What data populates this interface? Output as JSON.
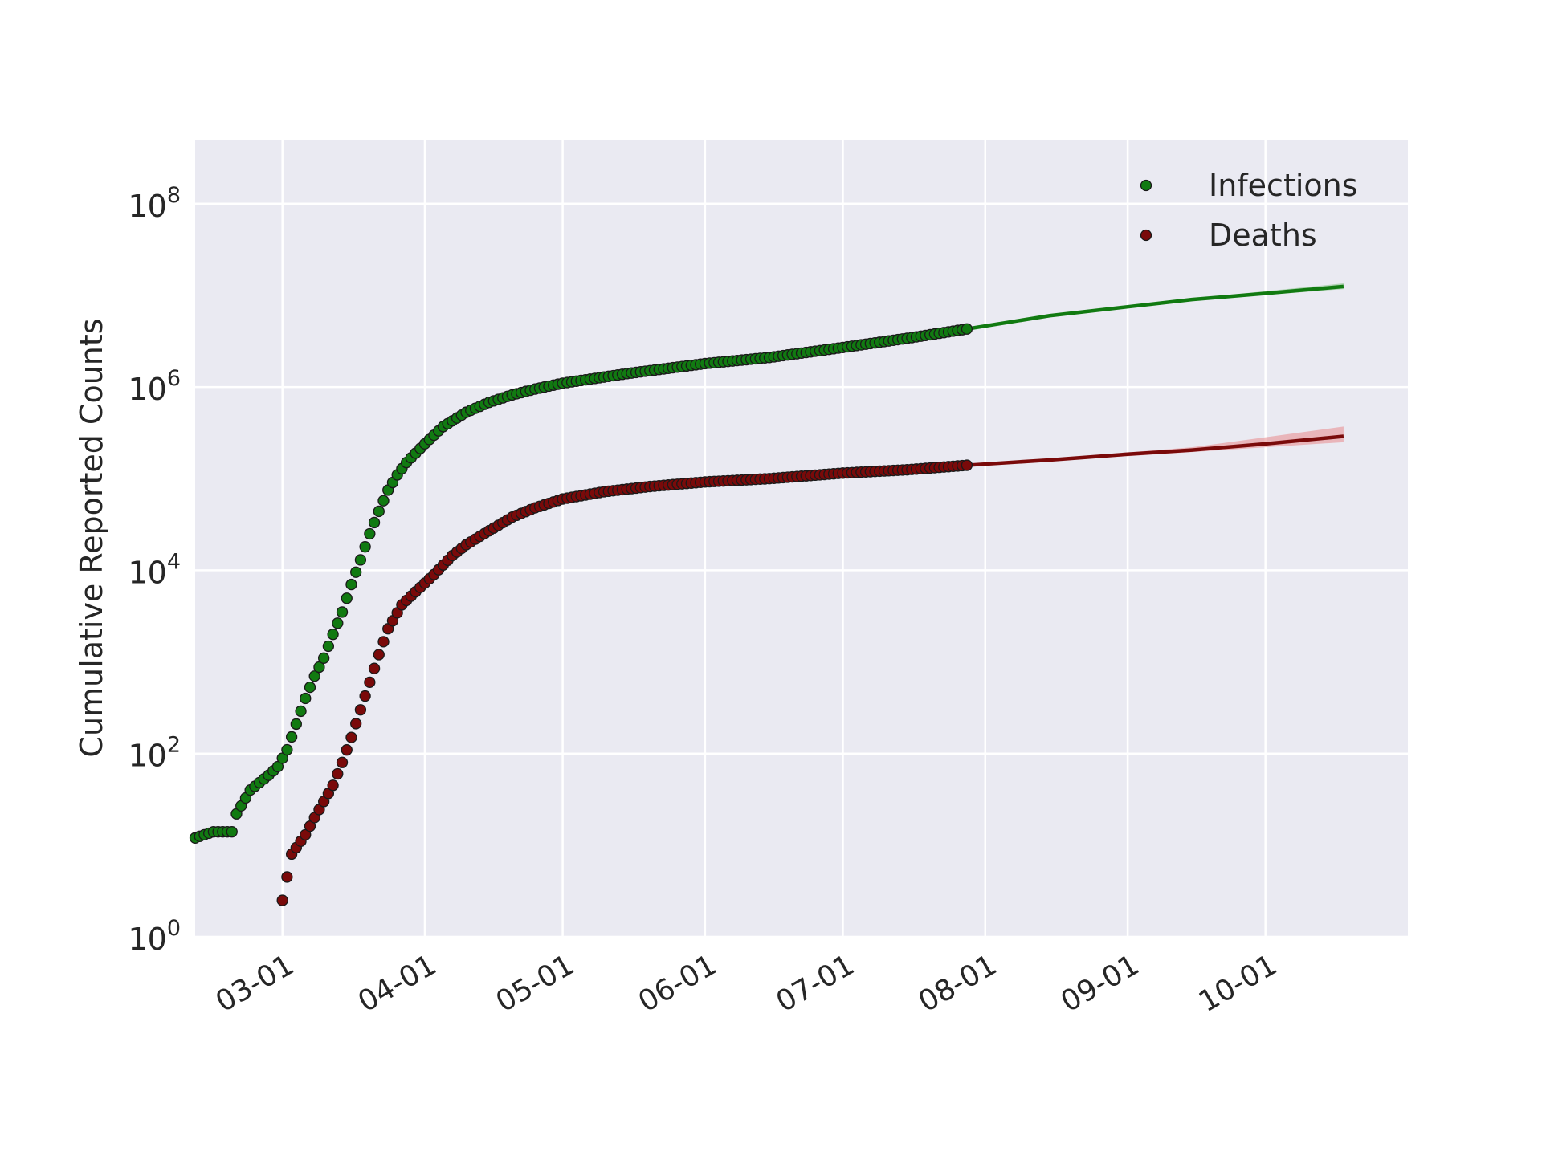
{
  "chart_data": {
    "type": "scatter",
    "title": "",
    "xlabel": "",
    "ylabel": "Cumulative Reported Counts",
    "y_scale": "log",
    "ylim": [
      1,
      500000000
    ],
    "xlim": [
      "2020-02-11",
      "2020-11-01"
    ],
    "grid": true,
    "legend_position": "top-right",
    "x_ticks": [
      {
        "date": "2020-03-01",
        "label": "03-01"
      },
      {
        "date": "2020-04-01",
        "label": "04-01"
      },
      {
        "date": "2020-05-01",
        "label": "05-01"
      },
      {
        "date": "2020-06-01",
        "label": "06-01"
      },
      {
        "date": "2020-07-01",
        "label": "07-01"
      },
      {
        "date": "2020-08-01",
        "label": "08-01"
      },
      {
        "date": "2020-09-01",
        "label": "09-01"
      },
      {
        "date": "2020-10-01",
        "label": "10-01"
      }
    ],
    "y_ticks": [
      {
        "value": 1,
        "base": "10",
        "exp": "0"
      },
      {
        "value": 100,
        "base": "10",
        "exp": "2"
      },
      {
        "value": 10000,
        "base": "10",
        "exp": "4"
      },
      {
        "value": 1000000,
        "base": "10",
        "exp": "6"
      },
      {
        "value": 100000000,
        "base": "10",
        "exp": "8"
      }
    ],
    "series": [
      {
        "name": "Infections",
        "color": "#117a11",
        "observed_start": "2020-02-11",
        "observed_end": "2020-07-28",
        "observed_anchors": [
          [
            "2020-02-11",
            12
          ],
          [
            "2020-02-13",
            13
          ],
          [
            "2020-02-15",
            14
          ],
          [
            "2020-02-19",
            14
          ],
          [
            "2020-02-20",
            22
          ],
          [
            "2020-02-23",
            40
          ],
          [
            "2020-02-27",
            58
          ],
          [
            "2020-02-29",
            72
          ],
          [
            "2020-03-02",
            110
          ],
          [
            "2020-03-04",
            210
          ],
          [
            "2020-03-06",
            400
          ],
          [
            "2020-03-08",
            700
          ],
          [
            "2020-03-10",
            1100
          ],
          [
            "2020-03-12",
            2000
          ],
          [
            "2020-03-14",
            3500
          ],
          [
            "2020-03-16",
            7000
          ],
          [
            "2020-03-18",
            13000
          ],
          [
            "2020-03-20",
            25000
          ],
          [
            "2020-03-22",
            44000
          ],
          [
            "2020-03-24",
            75000
          ],
          [
            "2020-03-26",
            110000
          ],
          [
            "2020-03-28",
            150000
          ],
          [
            "2020-04-01",
            240000
          ],
          [
            "2020-04-05",
            370000
          ],
          [
            "2020-04-10",
            530000
          ],
          [
            "2020-04-15",
            680000
          ],
          [
            "2020-04-20",
            820000
          ],
          [
            "2020-04-25",
            950000
          ],
          [
            "2020-05-01",
            1100000
          ],
          [
            "2020-05-15",
            1400000
          ],
          [
            "2020-06-01",
            1800000
          ],
          [
            "2020-06-15",
            2100000
          ],
          [
            "2020-07-01",
            2700000
          ],
          [
            "2020-07-15",
            3400000
          ],
          [
            "2020-07-28",
            4300000
          ]
        ],
        "projection": [
          [
            "2020-07-28",
            4300000
          ],
          [
            "2020-08-15",
            6000000
          ],
          [
            "2020-09-01",
            7500000
          ],
          [
            "2020-09-15",
            9000000
          ],
          [
            "2020-10-01",
            10500000
          ],
          [
            "2020-10-18",
            12500000
          ]
        ],
        "projection_band": [
          [
            "2020-07-28",
            4250000,
            4350000
          ],
          [
            "2020-08-15",
            5900000,
            6100000
          ],
          [
            "2020-09-15",
            8800000,
            9250000
          ],
          [
            "2020-10-18",
            11700000,
            13500000
          ]
        ]
      },
      {
        "name": "Deaths",
        "color": "#7a0a0a",
        "observed_start": "2020-03-01",
        "observed_end": "2020-07-28",
        "observed_anchors": [
          [
            "2020-03-01",
            2.5
          ],
          [
            "2020-03-02",
            4.5
          ],
          [
            "2020-03-03",
            8
          ],
          [
            "2020-03-06",
            13
          ],
          [
            "2020-03-08",
            20
          ],
          [
            "2020-03-10",
            30
          ],
          [
            "2020-03-12",
            45
          ],
          [
            "2020-03-14",
            80
          ],
          [
            "2020-03-16",
            150
          ],
          [
            "2020-03-18",
            300
          ],
          [
            "2020-03-20",
            600
          ],
          [
            "2020-03-22",
            1200
          ],
          [
            "2020-03-24",
            2300
          ],
          [
            "2020-03-27",
            4200
          ],
          [
            "2020-03-31",
            6500
          ],
          [
            "2020-04-03",
            9000
          ],
          [
            "2020-04-07",
            14500
          ],
          [
            "2020-04-10",
            19000
          ],
          [
            "2020-04-15",
            27000
          ],
          [
            "2020-04-20",
            38000
          ],
          [
            "2020-04-25",
            48000
          ],
          [
            "2020-05-01",
            60000
          ],
          [
            "2020-05-10",
            72000
          ],
          [
            "2020-05-20",
            82000
          ],
          [
            "2020-06-01",
            92000
          ],
          [
            "2020-06-15",
            100000
          ],
          [
            "2020-07-01",
            115000
          ],
          [
            "2020-07-15",
            125000
          ],
          [
            "2020-07-28",
            140000
          ]
        ],
        "projection": [
          [
            "2020-07-28",
            140000
          ],
          [
            "2020-08-15",
            160000
          ],
          [
            "2020-09-01",
            185000
          ],
          [
            "2020-09-15",
            205000
          ],
          [
            "2020-10-01",
            240000
          ],
          [
            "2020-10-18",
            290000
          ]
        ],
        "projection_band": [
          [
            "2020-07-28",
            138000,
            142000
          ],
          [
            "2020-08-15",
            155000,
            165000
          ],
          [
            "2020-09-15",
            195000,
            220000
          ],
          [
            "2020-10-18",
            250000,
            370000
          ]
        ]
      }
    ]
  }
}
